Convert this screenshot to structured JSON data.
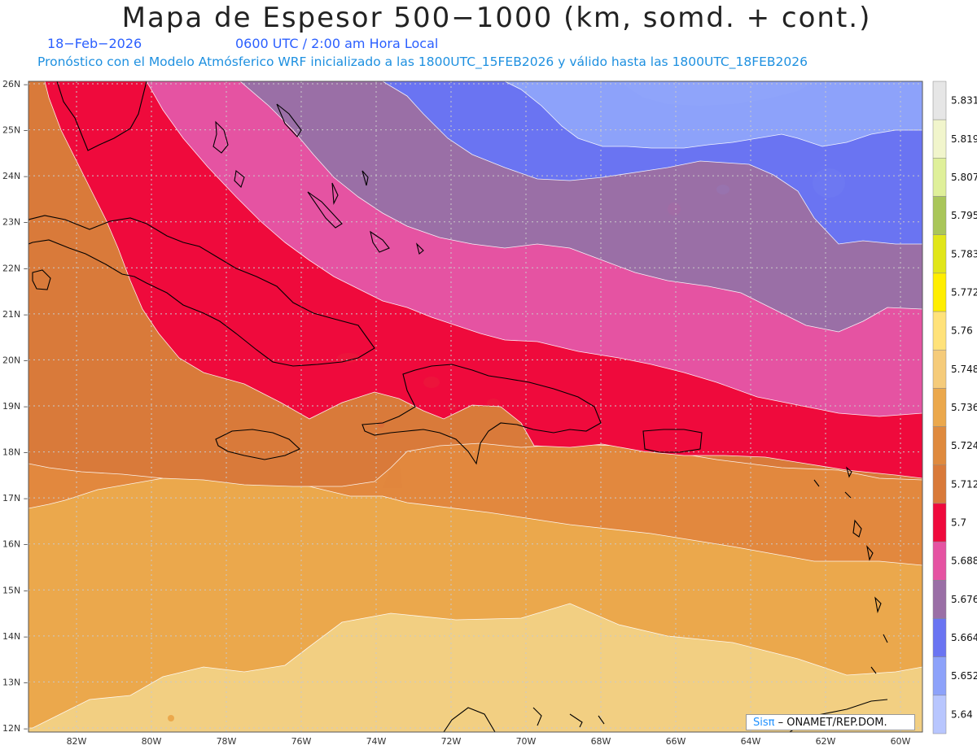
{
  "header": {
    "title": "Mapa de Espesor 500−1000 (km, somd. + cont.)",
    "date": "18−Feb−2026",
    "time": "0600 UTC / 2:00 am Hora Local",
    "description": "Pronóstico con el Modelo Atmósferico WRF inicializado a las 1800UTC_15FEB2026 y válido hasta las  1800UTC_18FEB2026"
  },
  "map": {
    "lat_labels": [
      "26N",
      "25N",
      "24N",
      "23N",
      "22N",
      "21N",
      "20N",
      "19N",
      "18N",
      "17N",
      "16N",
      "15N",
      "14N",
      "13N",
      "12N"
    ],
    "lon_labels": [
      "82W",
      "80W",
      "78W",
      "76W",
      "74W",
      "72W",
      "70W",
      "68W",
      "66W",
      "64W",
      "62W",
      "60W"
    ],
    "band_colors": [
      "#f2cf82",
      "#eba84c",
      "#e2883e",
      "#d97a3a",
      "#ef0a3c",
      "#e553a2",
      "#9a6fa6",
      "#6a74f2",
      "#8da2fa"
    ],
    "coastline_color": "#000000"
  },
  "colorbar": {
    "levels": [
      "5.831",
      "5.819",
      "5.807",
      "5.795",
      "5.783",
      "5.772",
      "5.76",
      "5.748",
      "5.736",
      "5.724",
      "5.712",
      "5.7",
      "5.688",
      "5.676",
      "5.664",
      "5.652",
      "5.64"
    ],
    "colors": [
      "#e6e6e6",
      "#f1f5cc",
      "#dff09a",
      "#a9c65a",
      "#e1e61a",
      "#ffee00",
      "#ffe27a",
      "#f5cb7a",
      "#eba84c",
      "#df8a3e",
      "#d97a3a",
      "#ef0a3c",
      "#e553a2",
      "#9a6fa6",
      "#6a74f2",
      "#8da2fa",
      "#b8c6fe"
    ]
  },
  "credit": {
    "brand": "Sisπ",
    "org": "– ONAMET/REP.DOM."
  }
}
